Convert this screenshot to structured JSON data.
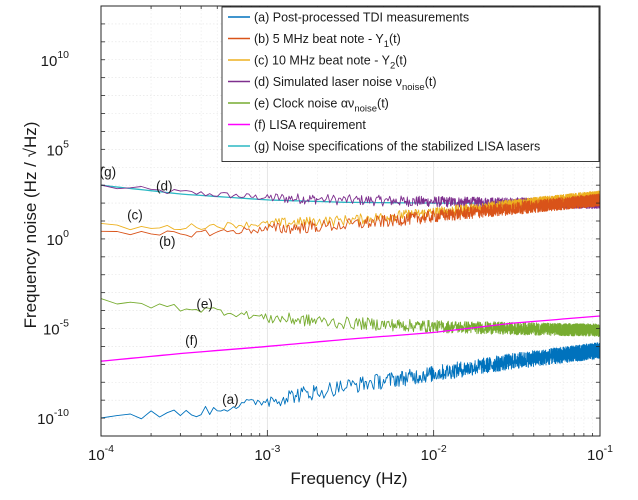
{
  "chart_data": {
    "type": "line",
    "title": "",
    "xlabel": "Frequency (Hz)",
    "ylabel": "Frequency noise (Hz / √Hz)",
    "xscale": "log",
    "yscale": "log",
    "xlim": [
      0.0001,
      0.1
    ],
    "ylim": [
      1e-11,
      10000000000000.0
    ],
    "grid": true,
    "legend_position": "top-right",
    "x_ticks": [
      {
        "value": 0.0001,
        "base": "10",
        "exp": "-4"
      },
      {
        "value": 0.001,
        "base": "10",
        "exp": "-3"
      },
      {
        "value": 0.01,
        "base": "10",
        "exp": "-2"
      },
      {
        "value": 0.1,
        "base": "10",
        "exp": "-1"
      }
    ],
    "y_ticks": [
      {
        "value": 1e-10,
        "base": "10",
        "exp": "-10"
      },
      {
        "value": 1e-05,
        "base": "10",
        "exp": "-5"
      },
      {
        "value": 1,
        "base": "10",
        "exp": "0"
      },
      {
        "value": 100000,
        "base": "10",
        "exp": "5"
      },
      {
        "value": 10000000000,
        "base": "10",
        "exp": "10"
      }
    ],
    "series": [
      {
        "key": "a",
        "name": "(a) Post-processed TDI measurements",
        "color": "#0072BD",
        "points": [
          [
            0.0001,
            1.4e-10
          ],
          [
            0.0002,
            1.5e-10
          ],
          [
            0.0004,
            2.2e-10
          ],
          [
            0.001,
            1e-09
          ],
          [
            0.003,
            6e-09
          ],
          [
            0.01,
            3e-08
          ],
          [
            0.03,
            1.5e-07
          ],
          [
            0.1,
            6e-07
          ]
        ]
      },
      {
        "key": "b",
        "name": "(b) 5 MHz beat note - Y",
        "sub": "1",
        "suffix": "(t)",
        "color": "#D95319",
        "points": [
          [
            0.0001,
            1.8
          ],
          [
            0.0002,
            1.6
          ],
          [
            0.0005,
            2.4
          ],
          [
            0.001,
            3.5
          ],
          [
            0.003,
            6
          ],
          [
            0.01,
            18
          ],
          [
            0.03,
            50
          ],
          [
            0.1,
            150
          ]
        ]
      },
      {
        "key": "c",
        "name": "(c) 10 MHz beat note - Y",
        "sub": "2",
        "suffix": "(t)",
        "color": "#EDB120",
        "points": [
          [
            0.0001,
            5
          ],
          [
            0.0002,
            4
          ],
          [
            0.0005,
            5.5
          ],
          [
            0.001,
            7
          ],
          [
            0.003,
            11
          ],
          [
            0.01,
            30
          ],
          [
            0.03,
            80
          ],
          [
            0.1,
            250
          ]
        ]
      },
      {
        "key": "d",
        "name": "(d) Simulated laser noise ν",
        "sub": "noise",
        "suffix": "(t)",
        "color": "#7E2F8E",
        "points": [
          [
            0.0001,
            900
          ],
          [
            0.0002,
            500
          ],
          [
            0.0005,
            300
          ],
          [
            0.001,
            200
          ],
          [
            0.003,
            150
          ],
          [
            0.01,
            120
          ],
          [
            0.03,
            100
          ],
          [
            0.1,
            100
          ]
        ]
      },
      {
        "key": "e",
        "name": "(e) Clock noise αν",
        "sub": "noise",
        "suffix": "(t)",
        "color": "#77AC30",
        "points": [
          [
            0.0001,
            0.0003
          ],
          [
            0.0002,
            0.0002
          ],
          [
            0.0005,
            0.0001
          ],
          [
            0.001,
            4e-05
          ],
          [
            0.003,
            2e-05
          ],
          [
            0.01,
            1.3e-05
          ],
          [
            0.03,
            1e-05
          ],
          [
            0.1,
            8e-06
          ]
        ]
      },
      {
        "key": "f",
        "name": "(f) LISA requirement",
        "color": "#FF00FF",
        "points": [
          [
            0.0001,
            1.5e-07
          ],
          [
            0.0003,
            4e-07
          ],
          [
            0.001,
            1e-06
          ],
          [
            0.003,
            2.5e-06
          ],
          [
            0.01,
            6e-06
          ],
          [
            0.03,
            2e-05
          ],
          [
            0.1,
            5e-05
          ]
        ]
      },
      {
        "key": "g",
        "name": "(g) Noise specifications of the stabilized LISA lasers",
        "color": "#2BB8C4",
        "points": [
          [
            0.0001,
            1000
          ],
          [
            0.0003,
            320
          ],
          [
            0.001,
            150
          ],
          [
            0.003,
            110
          ],
          [
            0.01,
            100
          ],
          [
            0.1,
            100
          ]
        ]
      }
    ],
    "annotations": [
      {
        "text": "(g)",
        "x": 0.00011,
        "y": 3000
      },
      {
        "text": "(d)",
        "x": 0.00024,
        "y": 500
      },
      {
        "text": "(c)",
        "x": 0.00016,
        "y": 12
      },
      {
        "text": "(b)",
        "x": 0.00025,
        "y": 0.4
      },
      {
        "text": "(e)",
        "x": 0.00042,
        "y": 0.00013
      },
      {
        "text": "(f)",
        "x": 0.00035,
        "y": 1.2e-06
      },
      {
        "text": "(a)",
        "x": 0.0006,
        "y": 6e-10
      }
    ]
  }
}
